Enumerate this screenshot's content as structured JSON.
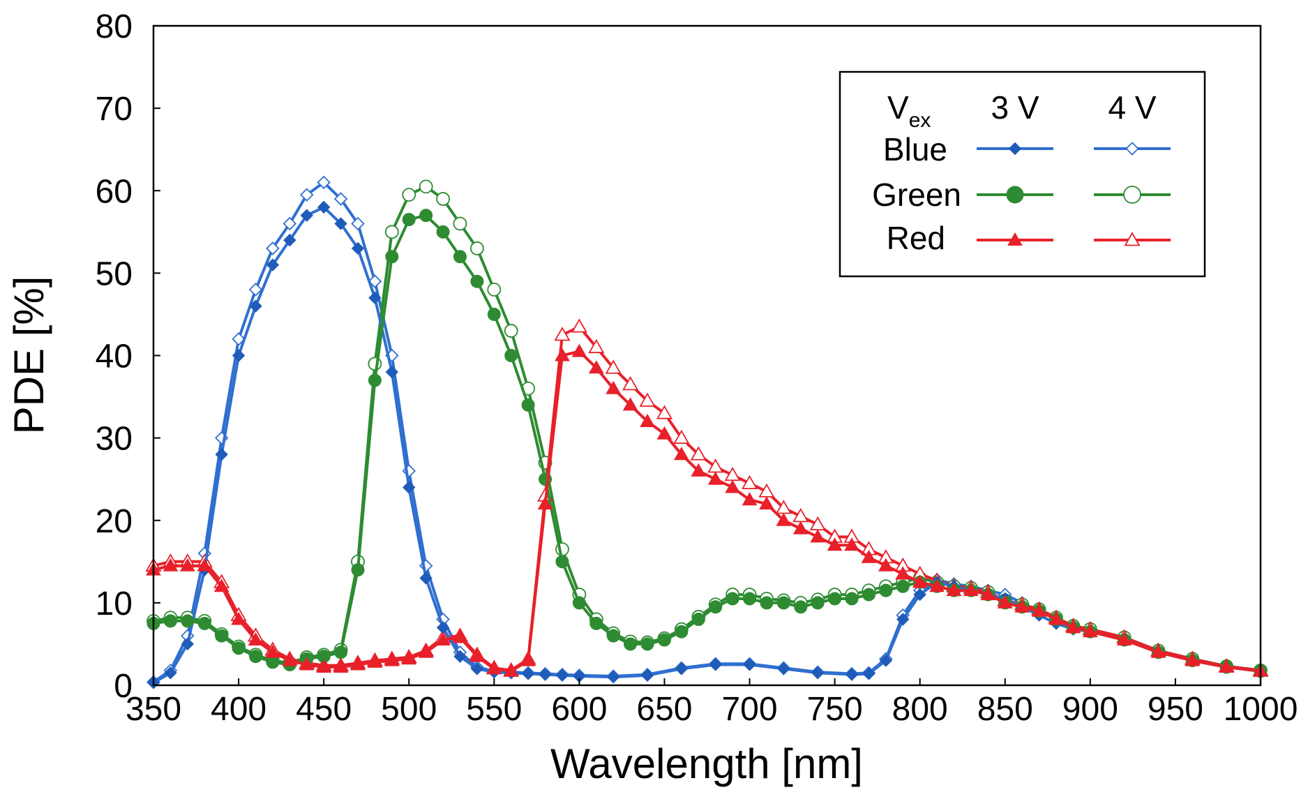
{
  "chart_data": {
    "type": "line",
    "title": "",
    "xlabel": "Wavelength [nm]",
    "ylabel": "PDE [%]",
    "xlim": [
      350,
      1000
    ],
    "ylim": [
      0,
      80
    ],
    "xticks": [
      350,
      400,
      450,
      500,
      550,
      600,
      650,
      700,
      750,
      800,
      850,
      900,
      950,
      1000
    ],
    "yticks": [
      0,
      10,
      20,
      30,
      40,
      50,
      60,
      70,
      80
    ],
    "grid": false,
    "legend": {
      "position": "top-right",
      "header_label_main": "V",
      "header_label_sub": "ex",
      "columns": [
        "3 V",
        "4 V"
      ],
      "rows": [
        "Blue",
        "Green",
        "Red"
      ]
    },
    "colors": {
      "blue": "#2f6fd0",
      "blue_marker": "#1f5bb8",
      "green": "#2e8b32",
      "red": "#e8202a"
    },
    "series": [
      {
        "name": "Blue 3 V",
        "key": "blue",
        "marker": "diamond",
        "filled": true,
        "x": [
          350,
          360,
          370,
          380,
          390,
          400,
          410,
          420,
          430,
          440,
          450,
          460,
          470,
          480,
          490,
          500,
          510,
          520,
          530,
          540,
          550,
          560,
          570,
          580,
          590,
          600,
          620,
          640,
          660,
          680,
          700,
          720,
          740,
          760,
          770,
          780,
          790,
          800,
          810,
          820,
          830,
          840,
          850,
          860,
          870,
          880,
          890,
          900,
          920,
          940,
          960,
          980,
          1000
        ],
        "y": [
          0.3,
          1.5,
          5,
          14,
          28,
          40,
          46,
          51,
          54,
          57,
          58,
          56,
          53,
          47,
          38,
          24,
          13,
          7,
          3.5,
          2,
          1.6,
          1.5,
          1.4,
          1.3,
          1.2,
          1.1,
          1,
          1.2,
          2,
          2.5,
          2.5,
          2,
          1.5,
          1.3,
          1.4,
          3,
          8,
          11,
          12.5,
          12,
          11.5,
          11,
          10.5,
          9.5,
          8.5,
          7.5,
          6.8,
          6.5,
          5.5,
          4,
          3,
          2.2,
          1.7
        ]
      },
      {
        "name": "Blue 4 V",
        "key": "blue",
        "marker": "diamond",
        "filled": false,
        "x": [
          350,
          360,
          370,
          380,
          390,
          400,
          410,
          420,
          430,
          440,
          450,
          460,
          470,
          480,
          490,
          500,
          510,
          520,
          530,
          540,
          550,
          560,
          570,
          580,
          590,
          600,
          620,
          640,
          660,
          680,
          700,
          720,
          740,
          760,
          770,
          780,
          790,
          800,
          810,
          820,
          830,
          840,
          850,
          860,
          870,
          880,
          890,
          900,
          920,
          940,
          960,
          980,
          1000
        ],
        "y": [
          0.4,
          1.8,
          6,
          16,
          30,
          42,
          48,
          53,
          56,
          59.5,
          61,
          59,
          56,
          49,
          40,
          26,
          14.5,
          8,
          4,
          2.2,
          1.7,
          1.6,
          1.5,
          1.4,
          1.3,
          1.2,
          1.1,
          1.3,
          2.1,
          2.6,
          2.6,
          2.1,
          1.6,
          1.4,
          1.5,
          3.2,
          8.5,
          11.5,
          12.8,
          12.3,
          12,
          11.5,
          11,
          10,
          9,
          8,
          7.2,
          6.8,
          5.8,
          4.2,
          3.2,
          2.3,
          1.8
        ]
      },
      {
        "name": "Green 3 V",
        "key": "green",
        "marker": "circle",
        "filled": true,
        "x": [
          350,
          360,
          370,
          380,
          390,
          400,
          410,
          420,
          430,
          440,
          450,
          460,
          470,
          480,
          490,
          500,
          510,
          520,
          530,
          540,
          550,
          560,
          570,
          580,
          590,
          600,
          610,
          620,
          630,
          640,
          650,
          660,
          670,
          680,
          690,
          700,
          710,
          720,
          730,
          740,
          750,
          760,
          770,
          780,
          790,
          800,
          810,
          820,
          830,
          840,
          850,
          860,
          870,
          880,
          890,
          900,
          920,
          940,
          960,
          980,
          1000
        ],
        "y": [
          7.5,
          7.8,
          7.8,
          7.5,
          6,
          4.5,
          3.5,
          2.8,
          2.5,
          3.2,
          3.5,
          4,
          14,
          37,
          52,
          56.5,
          57,
          55,
          52,
          49,
          45,
          40,
          34,
          25,
          15,
          10,
          7.5,
          6,
          5,
          5,
          5.5,
          6.5,
          8,
          9.5,
          10.5,
          10.5,
          10,
          10,
          9.5,
          10,
          10.5,
          10.5,
          11,
          11.5,
          12,
          12.5,
          12,
          11.5,
          11.5,
          11,
          10,
          9.5,
          9,
          8,
          7,
          6.5,
          5.5,
          4,
          3,
          2.2,
          1.7
        ]
      },
      {
        "name": "Green 4 V",
        "key": "green",
        "marker": "circle",
        "filled": false,
        "x": [
          350,
          360,
          370,
          380,
          390,
          400,
          410,
          420,
          430,
          440,
          450,
          460,
          470,
          480,
          490,
          500,
          510,
          520,
          530,
          540,
          550,
          560,
          570,
          580,
          590,
          600,
          610,
          620,
          630,
          640,
          650,
          660,
          670,
          680,
          690,
          700,
          710,
          720,
          730,
          740,
          750,
          760,
          770,
          780,
          790,
          800,
          810,
          820,
          830,
          840,
          850,
          860,
          870,
          880,
          890,
          900,
          920,
          940,
          960,
          980,
          1000
        ],
        "y": [
          7.8,
          8.2,
          8.2,
          7.8,
          6.2,
          4.7,
          3.7,
          3,
          2.7,
          3.4,
          3.7,
          4.3,
          15,
          39,
          55,
          59.5,
          60.5,
          59,
          56,
          53,
          48,
          43,
          36,
          27,
          16.5,
          11,
          8,
          6.3,
          5.3,
          5.2,
          5.7,
          6.8,
          8.3,
          9.8,
          11,
          11,
          10.5,
          10.3,
          10,
          10.4,
          11,
          11,
          11.5,
          12,
          12.5,
          13,
          12.5,
          12,
          11.8,
          11.3,
          10.3,
          9.8,
          9.2,
          8.2,
          7.2,
          6.8,
          5.8,
          4.2,
          3.2,
          2.3,
          1.8
        ]
      },
      {
        "name": "Red 3 V",
        "key": "red",
        "marker": "triangle",
        "filled": true,
        "x": [
          350,
          360,
          370,
          380,
          390,
          400,
          410,
          420,
          430,
          440,
          450,
          460,
          470,
          480,
          490,
          500,
          510,
          520,
          530,
          540,
          550,
          560,
          570,
          580,
          590,
          600,
          610,
          620,
          630,
          640,
          650,
          660,
          670,
          680,
          690,
          700,
          710,
          720,
          730,
          740,
          750,
          760,
          770,
          780,
          790,
          800,
          810,
          820,
          830,
          840,
          850,
          860,
          870,
          880,
          890,
          900,
          920,
          940,
          960,
          980,
          1000
        ],
        "y": [
          14,
          14.5,
          14.5,
          14.5,
          12,
          8,
          5.5,
          4,
          3,
          2.5,
          2.2,
          2.2,
          2.5,
          2.8,
          3,
          3.2,
          4,
          5.5,
          5.8,
          3.5,
          2,
          1.7,
          3,
          22,
          40,
          40.5,
          38.5,
          36,
          34,
          32,
          30.5,
          28,
          26,
          25,
          24,
          22.5,
          22,
          20,
          19,
          18,
          17,
          17,
          15.5,
          14.5,
          13.5,
          12.5,
          12,
          11.5,
          11.5,
          11,
          10,
          9.5,
          9,
          8,
          7,
          6.5,
          5.5,
          4,
          3,
          2.2,
          1.7
        ]
      },
      {
        "name": "Red 4 V",
        "key": "red",
        "marker": "triangle",
        "filled": false,
        "x": [
          350,
          360,
          370,
          380,
          390,
          400,
          410,
          420,
          430,
          440,
          450,
          460,
          470,
          480,
          490,
          500,
          510,
          520,
          530,
          540,
          550,
          560,
          570,
          580,
          590,
          600,
          610,
          620,
          630,
          640,
          650,
          660,
          670,
          680,
          690,
          700,
          710,
          720,
          730,
          740,
          750,
          760,
          770,
          780,
          790,
          800,
          810,
          820,
          830,
          840,
          850,
          860,
          870,
          880,
          890,
          900,
          920,
          940,
          960,
          980,
          1000
        ],
        "y": [
          14.5,
          15,
          15,
          15,
          12.5,
          8.5,
          6,
          4.3,
          3.2,
          2.7,
          2.4,
          2.4,
          2.7,
          3,
          3.2,
          3.4,
          4.2,
          5.8,
          6,
          3.7,
          2.1,
          1.8,
          3.2,
          23,
          42.5,
          43.5,
          41,
          38.5,
          36.5,
          34.5,
          33,
          30,
          28,
          26.5,
          25.5,
          24.5,
          23.5,
          21.5,
          20.5,
          19.5,
          18,
          18,
          16.5,
          15.5,
          14.5,
          13.5,
          12.7,
          12,
          11.8,
          11.3,
          10.3,
          9.8,
          9.2,
          8.2,
          7.2,
          6.8,
          5.8,
          4.2,
          3.2,
          2.3,
          1.8
        ]
      }
    ]
  }
}
